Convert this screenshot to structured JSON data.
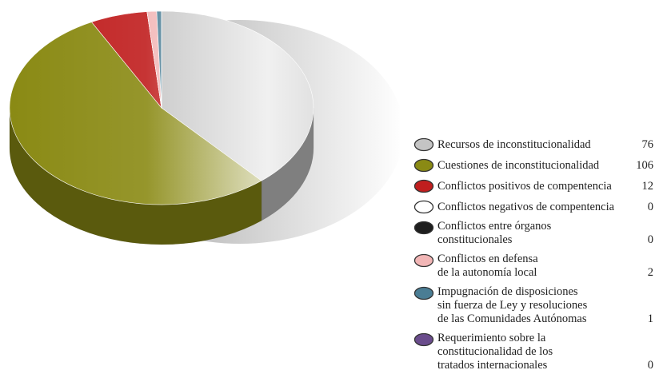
{
  "chart_data": {
    "type": "pie",
    "categories": [
      "Recursos de inconstitucionalidad",
      "Cuestiones de inconstitucionalidad",
      "Conflictos positivos de compentencia",
      "Conflictos negativos de compentencia",
      "Conflictos entre órganos\nconstitucionales",
      "Conflictos en defensa\nde la autonomía local",
      "Impugnación de disposiciones\nsin fuerza de Ley y resoluciones\nde las Comunidades Autónomas",
      "Requerimiento sobre la\nconstitucionalidad de los\ntratados internacionales"
    ],
    "values": [
      76,
      106,
      12,
      0,
      0,
      2,
      1,
      0
    ],
    "colors": [
      "#c4c4c4",
      "#8a8a14",
      "#c01e1e",
      "#ffffff",
      "#1e1e1e",
      "#f2b6b6",
      "#4a7d94",
      "#6a4c8c"
    ],
    "legend": "right"
  }
}
